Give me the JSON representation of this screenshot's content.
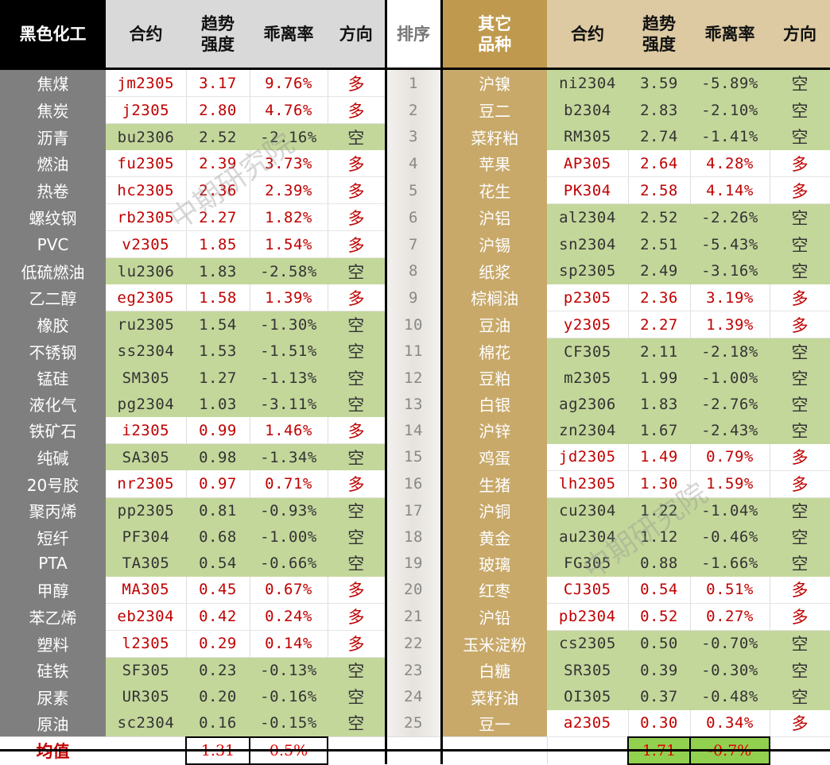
{
  "left": {
    "headers": {
      "category": "黑色化工",
      "contract": "合约",
      "strength": "趋势\n强度",
      "deviation": "乖离率",
      "direction": "方向"
    },
    "rows": [
      {
        "name": "焦煤",
        "contract": "jm2305",
        "strength": "3.17",
        "deviation": "9.76%",
        "direction": "多"
      },
      {
        "name": "焦炭",
        "contract": "j2305",
        "strength": "2.80",
        "deviation": "4.76%",
        "direction": "多"
      },
      {
        "name": "沥青",
        "contract": "bu2306",
        "strength": "2.52",
        "deviation": "-2.16%",
        "direction": "空"
      },
      {
        "name": "燃油",
        "contract": "fu2305",
        "strength": "2.39",
        "deviation": "3.73%",
        "direction": "多"
      },
      {
        "name": "热卷",
        "contract": "hc2305",
        "strength": "2.36",
        "deviation": "2.39%",
        "direction": "多"
      },
      {
        "name": "螺纹钢",
        "contract": "rb2305",
        "strength": "2.27",
        "deviation": "1.82%",
        "direction": "多"
      },
      {
        "name": "PVC",
        "contract": "v2305",
        "strength": "1.85",
        "deviation": "1.54%",
        "direction": "多"
      },
      {
        "name": "低硫燃油",
        "contract": "lu2306",
        "strength": "1.83",
        "deviation": "-2.58%",
        "direction": "空"
      },
      {
        "name": "乙二醇",
        "contract": "eg2305",
        "strength": "1.58",
        "deviation": "1.39%",
        "direction": "多"
      },
      {
        "name": "橡胶",
        "contract": "ru2305",
        "strength": "1.54",
        "deviation": "-1.30%",
        "direction": "空"
      },
      {
        "name": "不锈钢",
        "contract": "ss2304",
        "strength": "1.53",
        "deviation": "-1.51%",
        "direction": "空"
      },
      {
        "name": "锰硅",
        "contract": "SM305",
        "strength": "1.27",
        "deviation": "-1.13%",
        "direction": "空"
      },
      {
        "name": "液化气",
        "contract": "pg2304",
        "strength": "1.03",
        "deviation": "-3.11%",
        "direction": "空"
      },
      {
        "name": "铁矿石",
        "contract": "i2305",
        "strength": "0.99",
        "deviation": "1.46%",
        "direction": "多"
      },
      {
        "name": "纯碱",
        "contract": "SA305",
        "strength": "0.98",
        "deviation": "-1.34%",
        "direction": "空"
      },
      {
        "name": "20号胶",
        "contract": "nr2305",
        "strength": "0.97",
        "deviation": "0.71%",
        "direction": "多"
      },
      {
        "name": "聚丙烯",
        "contract": "pp2305",
        "strength": "0.81",
        "deviation": "-0.93%",
        "direction": "空"
      },
      {
        "name": "短纤",
        "contract": "PF304",
        "strength": "0.68",
        "deviation": "-1.00%",
        "direction": "空"
      },
      {
        "name": "PTA",
        "contract": "TA305",
        "strength": "0.54",
        "deviation": "-0.66%",
        "direction": "空"
      },
      {
        "name": "甲醇",
        "contract": "MA305",
        "strength": "0.45",
        "deviation": "0.67%",
        "direction": "多"
      },
      {
        "name": "苯乙烯",
        "contract": "eb2304",
        "strength": "0.42",
        "deviation": "0.24%",
        "direction": "多"
      },
      {
        "name": "塑料",
        "contract": "l2305",
        "strength": "0.29",
        "deviation": "0.14%",
        "direction": "多"
      },
      {
        "name": "硅铁",
        "contract": "SF305",
        "strength": "0.23",
        "deviation": "-0.13%",
        "direction": "空"
      },
      {
        "name": "尿素",
        "contract": "UR305",
        "strength": "0.20",
        "deviation": "-0.16%",
        "direction": "空"
      },
      {
        "name": "原油",
        "contract": "sc2304",
        "strength": "0.16",
        "deviation": "-0.15%",
        "direction": "空"
      }
    ],
    "mean": {
      "label": "均值",
      "strength": "1.31",
      "deviation": "0.5%"
    }
  },
  "rank_header": "排序",
  "ranks": [
    "1",
    "2",
    "3",
    "4",
    "5",
    "6",
    "7",
    "8",
    "9",
    "10",
    "11",
    "12",
    "13",
    "14",
    "15",
    "16",
    "17",
    "18",
    "19",
    "20",
    "21",
    "22",
    "23",
    "24",
    "25"
  ],
  "right": {
    "headers": {
      "category": "其它\n品种",
      "contract": "合约",
      "strength": "趋势\n强度",
      "deviation": "乖离率",
      "direction": "方向"
    },
    "rows": [
      {
        "name": "沪镍",
        "contract": "ni2304",
        "strength": "3.59",
        "deviation": "-5.89%",
        "direction": "空"
      },
      {
        "name": "豆二",
        "contract": "b2304",
        "strength": "2.83",
        "deviation": "-2.10%",
        "direction": "空"
      },
      {
        "name": "菜籽粕",
        "contract": "RM305",
        "strength": "2.74",
        "deviation": "-1.41%",
        "direction": "空"
      },
      {
        "name": "苹果",
        "contract": "AP305",
        "strength": "2.64",
        "deviation": "4.28%",
        "direction": "多"
      },
      {
        "name": "花生",
        "contract": "PK304",
        "strength": "2.58",
        "deviation": "4.14%",
        "direction": "多"
      },
      {
        "name": "沪铝",
        "contract": "al2304",
        "strength": "2.52",
        "deviation": "-2.26%",
        "direction": "空"
      },
      {
        "name": "沪锡",
        "contract": "sn2304",
        "strength": "2.51",
        "deviation": "-5.43%",
        "direction": "空"
      },
      {
        "name": "纸浆",
        "contract": "sp2305",
        "strength": "2.49",
        "deviation": "-3.16%",
        "direction": "空"
      },
      {
        "name": "棕榈油",
        "contract": "p2305",
        "strength": "2.36",
        "deviation": "3.19%",
        "direction": "多"
      },
      {
        "name": "豆油",
        "contract": "y2305",
        "strength": "2.27",
        "deviation": "1.39%",
        "direction": "多"
      },
      {
        "name": "棉花",
        "contract": "CF305",
        "strength": "2.11",
        "deviation": "-2.18%",
        "direction": "空"
      },
      {
        "name": "豆粕",
        "contract": "m2305",
        "strength": "1.99",
        "deviation": "-1.00%",
        "direction": "空"
      },
      {
        "name": "白银",
        "contract": "ag2306",
        "strength": "1.83",
        "deviation": "-2.76%",
        "direction": "空"
      },
      {
        "name": "沪锌",
        "contract": "zn2304",
        "strength": "1.67",
        "deviation": "-2.43%",
        "direction": "空"
      },
      {
        "name": "鸡蛋",
        "contract": "jd2305",
        "strength": "1.49",
        "deviation": "0.79%",
        "direction": "多"
      },
      {
        "name": "生猪",
        "contract": "lh2305",
        "strength": "1.30",
        "deviation": "1.59%",
        "direction": "多"
      },
      {
        "name": "沪铜",
        "contract": "cu2304",
        "strength": "1.22",
        "deviation": "-1.04%",
        "direction": "空"
      },
      {
        "name": "黄金",
        "contract": "au2304",
        "strength": "1.12",
        "deviation": "-0.46%",
        "direction": "空"
      },
      {
        "name": "玻璃",
        "contract": "FG305",
        "strength": "0.88",
        "deviation": "-1.66%",
        "direction": "空"
      },
      {
        "name": "红枣",
        "contract": "CJ305",
        "strength": "0.54",
        "deviation": "0.51%",
        "direction": "多"
      },
      {
        "name": "沪铅",
        "contract": "pb2304",
        "strength": "0.52",
        "deviation": "0.27%",
        "direction": "多"
      },
      {
        "name": "玉米淀粉",
        "contract": "cs2305",
        "strength": "0.50",
        "deviation": "-0.70%",
        "direction": "空"
      },
      {
        "name": "白糖",
        "contract": "SR305",
        "strength": "0.39",
        "deviation": "-0.30%",
        "direction": "空"
      },
      {
        "name": "菜籽油",
        "contract": "OI305",
        "strength": "0.37",
        "deviation": "-0.48%",
        "direction": "空"
      },
      {
        "name": "豆一",
        "contract": "a2305",
        "strength": "0.30",
        "deviation": "0.34%",
        "direction": "多"
      }
    ],
    "mean": {
      "strength": "1.71",
      "deviation": "-0.7%"
    }
  },
  "watermark": "中期研究院",
  "colors": {
    "long_text": "#c00000",
    "short_bg": "#c4d79b",
    "mean_highlight": "#92d050",
    "left_name_bg": "#7f7f7f",
    "right_name_bg": "#c8a96a"
  }
}
